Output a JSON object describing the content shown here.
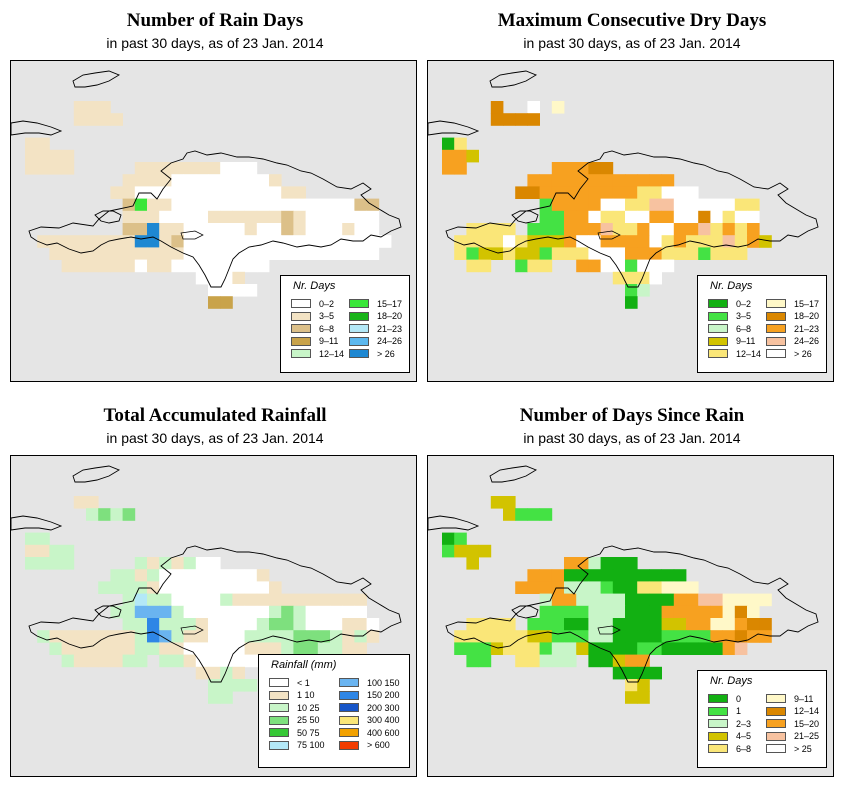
{
  "panels": [
    {
      "title": "Number of Rain Days",
      "subtitle": "in past 30 days, as of  23 Jan. 2014",
      "legend_title": "Nr. Days",
      "legend": [
        {
          "label": "0–2",
          "color": "#ffffff"
        },
        {
          "label": "3–5",
          "color": "#f3e3c4"
        },
        {
          "label": "6–8",
          "color": "#dcc089"
        },
        {
          "label": "9–11",
          "color": "#c9a34a"
        },
        {
          "label": "12–14",
          "color": "#c8f5c8"
        },
        {
          "label": "15–17",
          "color": "#39e639"
        },
        {
          "label": "18–20",
          "color": "#19b419"
        },
        {
          "label": "21–23",
          "color": "#b3e8f7"
        },
        {
          "label": "24–26",
          "color": "#5cb8ee"
        },
        {
          "label": "> 26",
          "color": "#1e88d2"
        }
      ]
    },
    {
      "title": "Maximum Consecutive Dry Days",
      "subtitle": "in past 30 days, as of  23 Jan. 2014",
      "legend_title": "Nr. Days",
      "legend": [
        {
          "label": "0–2",
          "color": "#12b012"
        },
        {
          "label": "3–5",
          "color": "#44e244"
        },
        {
          "label": "6–8",
          "color": "#c8f5c8"
        },
        {
          "label": "9–11",
          "color": "#d2c300"
        },
        {
          "label": "12–14",
          "color": "#fae678"
        },
        {
          "label": "15–17",
          "color": "#fff8c8"
        },
        {
          "label": "18–20",
          "color": "#da8700"
        },
        {
          "label": "21–23",
          "color": "#f7a120"
        },
        {
          "label": "24–26",
          "color": "#f7c2a0"
        },
        {
          "label": "> 26",
          "color": "#ffffff"
        }
      ]
    },
    {
      "title": "Total Accumulated Rainfall",
      "subtitle": "in past 30 days, as of  23 Jan. 2014",
      "legend_title": "Rainfall (mm)",
      "legend": [
        {
          "label": "< 1",
          "color": "#ffffff"
        },
        {
          "label": "1    10",
          "color": "#f3e3c4"
        },
        {
          "label": "10    25",
          "color": "#c8f5c8"
        },
        {
          "label": "25    50",
          "color": "#7ee07e"
        },
        {
          "label": "50    75",
          "color": "#36c836"
        },
        {
          "label": "75   100",
          "color": "#b3e8f7"
        },
        {
          "label": "100   150",
          "color": "#6ab4f0"
        },
        {
          "label": "150   200",
          "color": "#2e86e6"
        },
        {
          "label": "200   300",
          "color": "#1655c8"
        },
        {
          "label": "300   400",
          "color": "#fae678"
        },
        {
          "label": "400   600",
          "color": "#f2a100"
        },
        {
          "label": "> 600",
          "color": "#f23c00"
        }
      ]
    },
    {
      "title": "Number of Days Since Rain",
      "subtitle": "in past 30 days, as of  23 Jan. 2014",
      "legend_title": "Nr. Days",
      "legend": [
        {
          "label": "0",
          "color": "#12b012"
        },
        {
          "label": "1",
          "color": "#44e244"
        },
        {
          "label": "2–3",
          "color": "#c8f5c8"
        },
        {
          "label": "4–5",
          "color": "#d2c300"
        },
        {
          "label": "6–8",
          "color": "#fae678"
        },
        {
          "label": "9–11",
          "color": "#fff8c8"
        },
        {
          "label": "12–14",
          "color": "#da8700"
        },
        {
          "label": "15–20",
          "color": "#f7a120"
        },
        {
          "label": "21–25",
          "color": "#f7c2a0"
        },
        {
          "label": "> 25",
          "color": "#ffffff"
        }
      ]
    }
  ]
}
